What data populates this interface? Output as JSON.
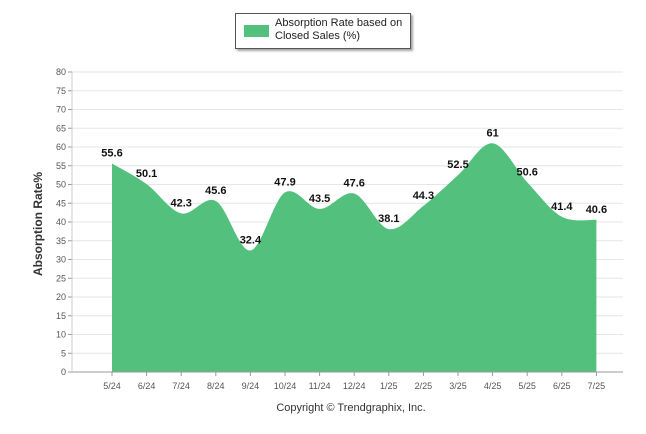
{
  "chart_data": {
    "type": "area",
    "categories": [
      "5/24",
      "6/24",
      "7/24",
      "8/24",
      "9/24",
      "10/24",
      "11/24",
      "12/24",
      "1/25",
      "2/25",
      "3/25",
      "4/25",
      "5/25",
      "6/25",
      "7/25"
    ],
    "series": [
      {
        "name": "Absorption Rate based on Closed Sales (%)",
        "values": [
          55.6,
          50.1,
          42.3,
          45.6,
          32.4,
          47.9,
          43.5,
          47.6,
          38.1,
          44.3,
          52.5,
          61,
          50.6,
          41.4,
          40.6
        ],
        "color": "#53c17d"
      }
    ],
    "title": "",
    "xlabel": "",
    "ylabel": "Absorption Rate%",
    "ylim": [
      0,
      80
    ],
    "yticks": [
      0,
      5,
      10,
      15,
      20,
      25,
      30,
      35,
      40,
      45,
      50,
      55,
      60,
      65,
      70,
      75,
      80
    ],
    "grid": true,
    "legend_position": "top-center",
    "data_labels": true
  },
  "legend": {
    "label": "Absorption Rate based on Closed Sales (%)"
  },
  "footer": {
    "copyright": "Copyright © Trendgraphix, Inc."
  }
}
